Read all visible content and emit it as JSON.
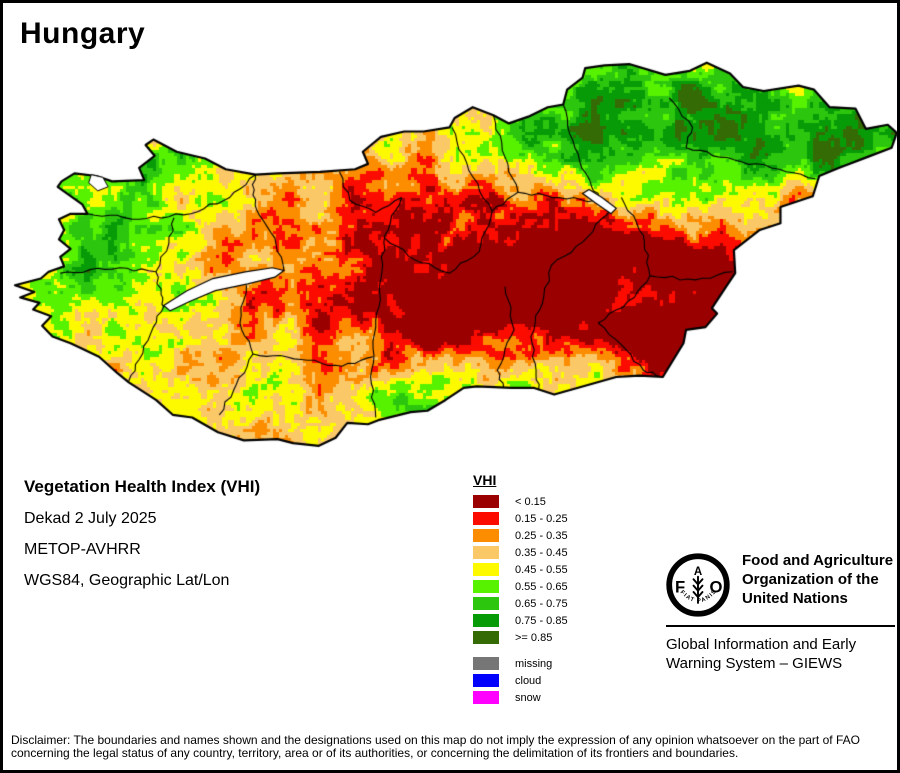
{
  "title": "Hungary",
  "product_info": {
    "name": "Vegetation Health Index (VHI)",
    "period": "Dekad 2 July 2025",
    "sensor": "METOP-AVHRR",
    "projection": "WGS84, Geographic Lat/Lon"
  },
  "legend": {
    "heading": "VHI",
    "classes": [
      {
        "label": "< 0.15",
        "color": "#9B0000"
      },
      {
        "label": "0.15 - 0.25",
        "color": "#FC0B00"
      },
      {
        "label": "0.25 - 0.35",
        "color": "#FC8D00"
      },
      {
        "label": "0.35 - 0.45",
        "color": "#FBC868"
      },
      {
        "label": "0.45 - 0.55",
        "color": "#FDFA00"
      },
      {
        "label": "0.55 - 0.65",
        "color": "#56F200"
      },
      {
        "label": "0.65 - 0.75",
        "color": "#2CC60E"
      },
      {
        "label": "0.75 - 0.85",
        "color": "#089B08"
      },
      {
        "label": ">= 0.85",
        "color": "#356B04"
      }
    ],
    "extra_classes": [
      {
        "label": "missing",
        "color": "#767676"
      },
      {
        "label": "cloud",
        "color": "#0000FF"
      },
      {
        "label": "snow",
        "color": "#FF00FF"
      }
    ]
  },
  "map": {
    "water_color": "#FFFFFF",
    "border_color": "#000000"
  },
  "footer": {
    "fao": {
      "logo_letters": {
        "left": "F",
        "top": "A",
        "right": "O"
      },
      "motto": "FIAT PANIS",
      "name_lines": [
        "Food and Agriculture",
        "Organization of the",
        "United Nations"
      ],
      "giews_lines": [
        "Global Information and Early",
        "Warning System – GIEWS"
      ]
    }
  },
  "disclaimer_lines": [
    "Disclaimer: The boundaries and names shown and the designations used on this map do not imply the expression of any opinion whatsoever on the part of FAO",
    "concerning the legal status of any country, territory, area or of its authorities, or concerning the delimitation of its frontiers and boundaries."
  ]
}
